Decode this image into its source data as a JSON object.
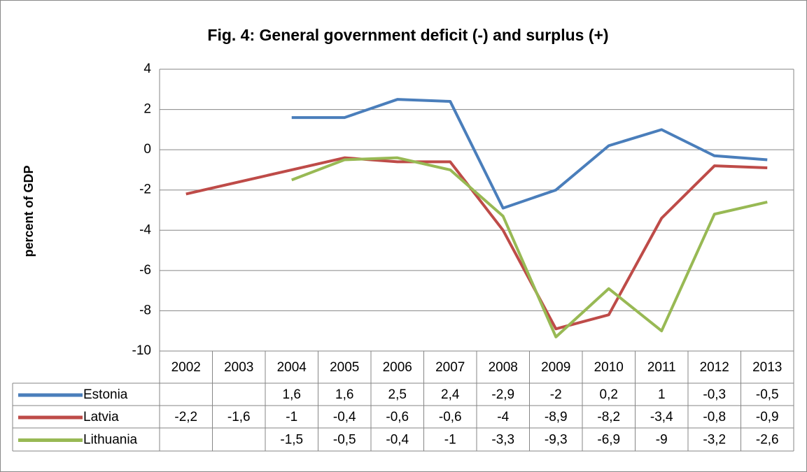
{
  "chart_data": {
    "type": "line",
    "title": "Fig. 4: General government deficit (-) and surplus (+)",
    "y_label": "percent of GDP",
    "categories": [
      "2002",
      "2003",
      "2004",
      "2005",
      "2006",
      "2007",
      "2008",
      "2009",
      "2010",
      "2011",
      "2012",
      "2013"
    ],
    "series": [
      {
        "name": "Estonia",
        "color": "#4a7ebb",
        "values": [
          null,
          null,
          1.6,
          1.6,
          2.5,
          2.4,
          -2.9,
          -2,
          0.2,
          1,
          -0.3,
          -0.5
        ],
        "value_labels": [
          null,
          null,
          "1,6",
          "1,6",
          "2,5",
          "2,4",
          "-2,9",
          "-2",
          "0,2",
          "1",
          "-0,3",
          "-0,5"
        ]
      },
      {
        "name": "Latvia",
        "color": "#be4b48",
        "values": [
          -2.2,
          -1.6,
          -1,
          -0.4,
          -0.6,
          -0.6,
          -4,
          -8.9,
          -8.2,
          -3.4,
          -0.8,
          -0.9
        ],
        "value_labels": [
          "-2,2",
          "-1,6",
          "-1",
          "-0,4",
          "-0,6",
          "-0,6",
          "-4",
          "-8,9",
          "-8,2",
          "-3,4",
          "-0,8",
          "-0,9"
        ]
      },
      {
        "name": "Lithuania",
        "color": "#98b954",
        "values": [
          null,
          null,
          -1.5,
          -0.5,
          -0.4,
          -1,
          -3.3,
          -9.3,
          -6.9,
          -9,
          -3.2,
          -2.6
        ],
        "value_labels": [
          null,
          null,
          "-1,5",
          "-0,5",
          "-0,4",
          "-1",
          "-3,3",
          "-9,3",
          "-6,9",
          "-9",
          "-3,2",
          "-2,6"
        ]
      }
    ],
    "ylim": [
      -10,
      4
    ],
    "yticks": [
      4,
      2,
      0,
      -2,
      -4,
      -6,
      -8,
      -10
    ],
    "grid": true
  }
}
